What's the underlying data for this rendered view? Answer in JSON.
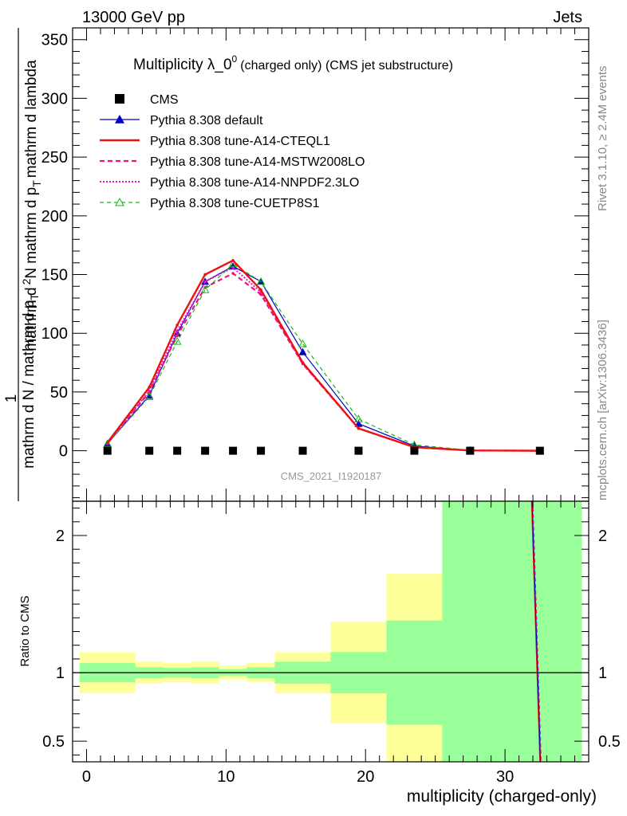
{
  "header": {
    "energy": "13000 GeV pp",
    "category": "Jets"
  },
  "side_labels": {
    "rivet": "Rivet 3.1.10, ≥ 2.4M events",
    "mcplots": "mcplots.cern.ch [arXiv:1306.3436]"
  },
  "watermark": "CMS_2021_I1920187",
  "colors": {
    "data": "#000000",
    "default": "#0000cc",
    "a14_cteql1": "#ee1111",
    "a14_mstw": "#ee1177",
    "a14_nnpdf": "#ee11cc",
    "cuetp8s1": "#11bb11",
    "band_inner": "#99ff99",
    "band_outer": "#ffff99"
  },
  "chart_data": [
    {
      "type": "line",
      "title_main": "Multiplicity λ_0",
      "title_sup": "0",
      "title_sub": "(charged only) (CMS jet substructure)",
      "ylabel_num": "1",
      "ylabel_num_top": "mathrm d",
      "ylabel_num_N": "N",
      "ylabel_num_sup": "2",
      "ylabel_num_rest": "mathrm d p",
      "ylabel_num_T": "T",
      "ylabel_num_end": "mathrm d lambda",
      "ylabel_den": "mathrm d N / mathrm d p",
      "ylabel_den_T": "T",
      "xlim": [
        -1,
        36
      ],
      "ylim": [
        -43,
        360
      ],
      "yticks": [
        0,
        50,
        100,
        150,
        200,
        250,
        300,
        350
      ],
      "ytick_labels": [
        "0",
        "50",
        "100",
        "150",
        "200",
        "250",
        "300",
        "350"
      ],
      "legend_position": "top-left",
      "series": [
        {
          "name": "CMS",
          "style": "data",
          "x": [
            1.5,
            4.5,
            6.5,
            8.5,
            10.5,
            12.5,
            15.5,
            19.5,
            23.5,
            27.5,
            32.5
          ],
          "values": [
            0,
            0,
            0,
            0,
            0,
            0,
            0,
            0,
            0,
            0,
            0
          ]
        },
        {
          "name": "Pythia 8.308 default",
          "style": "default",
          "x": [
            1.5,
            4.5,
            6.5,
            8.5,
            10.5,
            12.5,
            15.5,
            19.5,
            23.5,
            27.5,
            32.5
          ],
          "values": [
            6,
            47,
            100,
            144,
            157,
            144,
            84,
            23,
            4,
            0.3,
            0
          ]
        },
        {
          "name": "Pythia 8.308 tune-A14-CTEQL1",
          "style": "a14_cteql1",
          "x": [
            1.5,
            4.5,
            6.5,
            8.5,
            10.5,
            12.5,
            15.5,
            19.5,
            23.5,
            27.5,
            32.5
          ],
          "values": [
            7,
            54,
            107,
            150,
            162,
            137,
            75,
            19,
            3,
            0.2,
            0
          ]
        },
        {
          "name": "Pythia 8.308 tune-A14-MSTW2008LO",
          "style": "a14_mstw",
          "x": [
            1.5,
            4.5,
            6.5,
            8.5,
            10.5,
            12.5,
            15.5,
            19.5,
            23.5,
            27.5,
            32.5
          ],
          "values": [
            6,
            50,
            98,
            139,
            151,
            133,
            74,
            19,
            3,
            0.2,
            0
          ]
        },
        {
          "name": "Pythia 8.308 tune-A14-NNPDF2.3LO",
          "style": "a14_nnpdf",
          "x": [
            1.5,
            4.5,
            6.5,
            8.5,
            10.5,
            12.5,
            15.5,
            19.5,
            23.5,
            27.5,
            32.5
          ],
          "values": [
            6,
            51,
            102,
            144,
            156,
            135,
            74,
            19,
            3,
            0.2,
            0
          ]
        },
        {
          "name": "Pythia 8.308 tune-CUETP8S1",
          "style": "cuetp8s1",
          "x": [
            1.5,
            4.5,
            6.5,
            8.5,
            10.5,
            12.5,
            15.5,
            19.5,
            23.5,
            27.5,
            32.5
          ],
          "values": [
            6,
            46,
            93,
            137,
            159,
            144,
            91,
            27,
            5,
            0.4,
            0
          ]
        }
      ]
    },
    {
      "type": "area",
      "ylabel": "Ratio to CMS",
      "xlabel": "multiplicity (charged-only)",
      "xlim": [
        -1,
        36
      ],
      "ylim": [
        0.35,
        2.25
      ],
      "xticks": [
        0,
        10,
        20,
        30
      ],
      "xtick_labels": [
        "0",
        "10",
        "20",
        "30"
      ],
      "yticks": [
        0.5,
        1,
        2
      ],
      "ytick_labels": [
        "0.5",
        "1",
        "2"
      ],
      "bins": [
        {
          "lo": -0.5,
          "hi": 3.5,
          "inner": [
            0.93,
            1.07
          ],
          "outer": [
            0.85,
            1.15
          ]
        },
        {
          "lo": 3.5,
          "hi": 5.5,
          "inner": [
            0.96,
            1.04
          ],
          "outer": [
            0.92,
            1.08
          ]
        },
        {
          "lo": 5.5,
          "hi": 7.5,
          "inner": [
            0.965,
            1.035
          ],
          "outer": [
            0.93,
            1.07
          ]
        },
        {
          "lo": 7.5,
          "hi": 9.5,
          "inner": [
            0.96,
            1.04
          ],
          "outer": [
            0.92,
            1.08
          ]
        },
        {
          "lo": 9.5,
          "hi": 11.5,
          "inner": [
            0.975,
            1.025
          ],
          "outer": [
            0.95,
            1.05
          ]
        },
        {
          "lo": 11.5,
          "hi": 13.5,
          "inner": [
            0.96,
            1.04
          ],
          "outer": [
            0.93,
            1.07
          ]
        },
        {
          "lo": 13.5,
          "hi": 17.5,
          "inner": [
            0.92,
            1.08
          ],
          "outer": [
            0.85,
            1.15
          ]
        },
        {
          "lo": 17.5,
          "hi": 21.5,
          "inner": [
            0.85,
            1.15
          ],
          "outer": [
            0.63,
            1.37
          ]
        },
        {
          "lo": 21.5,
          "hi": 25.5,
          "inner": [
            0.62,
            1.38
          ],
          "outer": [
            0.35,
            1.72
          ]
        },
        {
          "lo": 25.5,
          "hi": 35.5,
          "inner": [
            0.35,
            2.25
          ],
          "outer": [
            0.35,
            2.25
          ]
        }
      ],
      "ratio_line": {
        "x": [
          31.9,
          32.5
        ],
        "values": [
          2.25,
          0.35
        ]
      }
    }
  ]
}
